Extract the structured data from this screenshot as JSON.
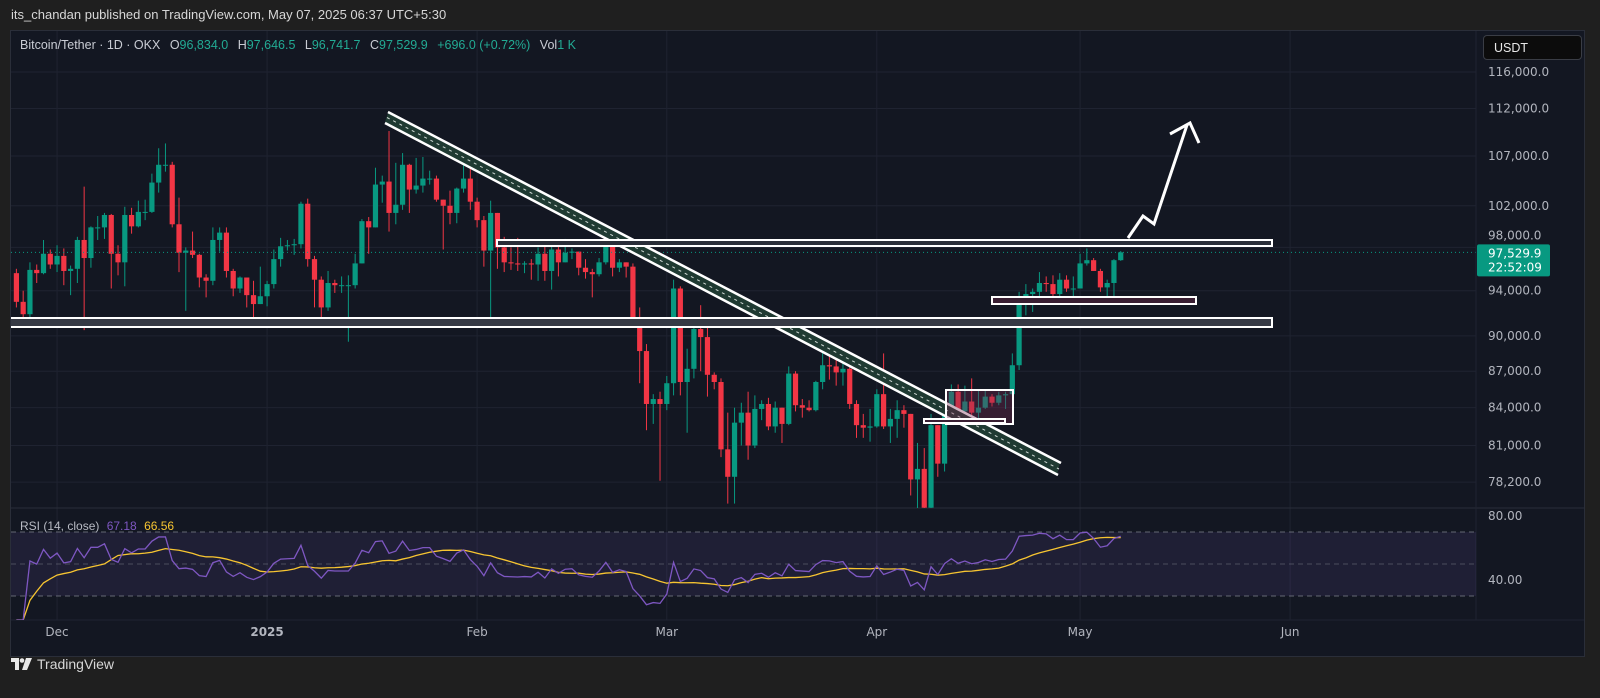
{
  "header": {
    "published_by": "its_chandan published on TradingView.com, May 07, 2025 06:37 UTC+5:30"
  },
  "legend": {
    "symbol": "Bitcoin/Tether · 1D · OKX",
    "open_label": "O",
    "open": "96,834.0",
    "high_label": "H",
    "high": "97,646.5",
    "low_label": "L",
    "low": "96,741.7",
    "close_label": "C",
    "close": "97,529.9",
    "change": "+696.0 (+0.72%)",
    "vol_label": "Vol",
    "vol": "1 K"
  },
  "currency_button": "USDT",
  "price_label": {
    "price": "97,529.9",
    "countdown": "22:52:09"
  },
  "rsi_legend": {
    "name": "RSI (14, close)",
    "rsi": "67.18",
    "ma": "66.56"
  },
  "footer": {
    "brand": "TradingView"
  },
  "colors": {
    "up": "#089981",
    "down": "#f23645",
    "rsi": "#7e57c2",
    "rsi_ma": "#f7c531",
    "background": "#131722",
    "drawings": "#ffffff"
  },
  "chart_data": {
    "type": "candlestick",
    "symbol": "Bitcoin/Tether",
    "interval": "1D",
    "exchange": "OKX",
    "y_scale": "log",
    "ylim": [
      74000,
      118000
    ],
    "price_ticks": [
      "116,000.0",
      "112,000.0",
      "107,000.0",
      "102,000.0",
      "98,000.0",
      "94,000.0",
      "90,000.0",
      "87,000.0",
      "84,000.0",
      "81,000.0",
      "78,200.0"
    ],
    "price_tick_values": [
      116000,
      112000,
      107000,
      102000,
      98000,
      94000,
      90000,
      87000,
      84000,
      81000,
      78200
    ],
    "x_range": [
      "2024-11-25",
      "2025-06-12"
    ],
    "x_ticks": [
      {
        "label": "Dec",
        "day": 6
      },
      {
        "label": "2025",
        "day": 37
      },
      {
        "label": "Feb",
        "day": 68
      },
      {
        "label": "Mar",
        "day": 96
      },
      {
        "label": "Apr",
        "day": 127
      },
      {
        "label": "May",
        "day": 157
      },
      {
        "label": "Jun",
        "day": 188
      }
    ],
    "first_date": "2024-11-25",
    "first_open_k": 95.6,
    "close_k": [
      93.0,
      91.9,
      95.9,
      95.6,
      97.4,
      96.4,
      97.2,
      95.8,
      96.0,
      98.7,
      97.0,
      99.9,
      99.9,
      101.1,
      97.4,
      96.6,
      101.1,
      100.0,
      101.4,
      101.4,
      104.3,
      106.1,
      106.1,
      100.2,
      97.5,
      97.7,
      97.3,
      95.2,
      94.9,
      98.7,
      99.4,
      95.8,
      94.2,
      95.2,
      93.6,
      92.8,
      93.5,
      94.6,
      96.9,
      98.1,
      98.2,
      98.3,
      102.2,
      96.9,
      95.0,
      92.5,
      94.7,
      94.5,
      94.5,
      94.5,
      96.5,
      100.5,
      99.9,
      104.1,
      104.4,
      101.3,
      102.1,
      106.1,
      103.6,
      104.0,
      104.7,
      104.7,
      102.6,
      102.0,
      101.3,
      103.7,
      104.7,
      102.4,
      100.6,
      97.7,
      101.3,
      98.0,
      96.6,
      96.5,
      96.4,
      96.5,
      96.4,
      97.4,
      95.8,
      97.8,
      96.6,
      97.5,
      97.6,
      96.1,
      95.7,
      95.5,
      96.6,
      98.3,
      96.1,
      96.6,
      96.2,
      91.5,
      88.7,
      84.3,
      84.7,
      84.3,
      86.0,
      94.2,
      86.1,
      87.2,
      90.6,
      89.9,
      86.7,
      86.1,
      80.7,
      78.6,
      82.8,
      83.6,
      81.0,
      83.9,
      84.3,
      82.5,
      84.0,
      82.7,
      86.8,
      84.2,
      84.0,
      83.8,
      86.1,
      87.5,
      87.4,
      86.9,
      87.2,
      84.3,
      82.6,
      82.4,
      82.5,
      85.1,
      82.5,
      83.1,
      83.8,
      83.5,
      78.4,
      79.2,
      76.3,
      82.6,
      79.6,
      83.4,
      85.3,
      83.7,
      84.5,
      83.6,
      84.0,
      84.9,
      84.4,
      85.0,
      85.1,
      87.5,
      93.4,
      93.7,
      93.9,
      94.7,
      94.6,
      93.7,
      95.0,
      94.2,
      94.2,
      96.5,
      96.8,
      95.8,
      94.3,
      94.7,
      96.8,
      97.53
    ],
    "high_k": [
      96.0,
      94.0,
      96.6,
      96.4,
      98.7,
      97.8,
      98.2,
      97.9,
      96.3,
      99.0,
      103.9,
      100.0,
      101.0,
      101.3,
      101.2,
      98.2,
      101.9,
      101.8,
      102.5,
      102.6,
      105.2,
      107.8,
      108.3,
      106.4,
      102.8,
      98.0,
      99.5,
      97.4,
      95.5,
      99.9,
      99.9,
      99.9,
      96.0,
      95.3,
      95.0,
      94.9,
      96.2,
      94.9,
      97.8,
      98.9,
      98.7,
      98.8,
      102.4,
      102.7,
      97.2,
      95.3,
      95.8,
      95.0,
      95.3,
      95.4,
      97.4,
      100.7,
      100.9,
      105.8,
      105.0,
      109.6,
      106.3,
      107.3,
      106.2,
      106.8,
      106.9,
      105.5,
      105.0,
      102.6,
      103.5,
      103.8,
      106.4,
      106.0,
      102.8,
      101.0,
      102.5,
      101.3,
      99.0,
      98.0,
      98.9,
      96.7,
      96.9,
      98.0,
      98.5,
      98.5,
      98.1,
      98.8,
      97.9,
      97.6,
      96.9,
      96.0,
      97.0,
      98.8,
      99.5,
      96.9,
      96.6,
      96.5,
      92.5,
      89.3,
      85.1,
      85.3,
      86.6,
      95.0,
      94.4,
      88.9,
      91.0,
      92.7,
      91.1,
      86.9,
      86.4,
      83.6,
      84.0,
      84.4,
      85.3,
      85.0,
      84.6,
      84.8,
      84.5,
      84.0,
      87.4,
      87.0,
      84.7,
      84.6,
      86.2,
      88.7,
      88.5,
      88.3,
      87.8,
      87.6,
      84.6,
      83.5,
      83.9,
      85.5,
      88.5,
      83.9,
      84.6,
      84.2,
      83.5,
      81.2,
      80.8,
      83.5,
      82.6,
      84.2,
      85.9,
      85.9,
      85.8,
      86.4,
      85.5,
      85.4,
      85.1,
      85.3,
      85.3,
      88.5,
      93.9,
      94.6,
      94.2,
      95.7,
      95.3,
      95.4,
      95.6,
      95.4,
      95.3,
      97.4,
      97.9,
      97.0,
      96.0,
      95.0,
      96.9,
      97.65
    ],
    "low_k": [
      92.5,
      90.8,
      91.6,
      94.7,
      95.5,
      96.0,
      95.7,
      94.5,
      93.6,
      94.7,
      90.5,
      96.1,
      98.7,
      98.8,
      94.2,
      95.4,
      94.4,
      99.3,
      99.9,
      100.6,
      101.3,
      103.3,
      105.4,
      99.9,
      95.7,
      92.2,
      97.0,
      94.3,
      93.4,
      94.5,
      97.6,
      95.2,
      93.5,
      93.8,
      92.5,
      91.5,
      92.8,
      92.6,
      94.2,
      96.2,
      97.7,
      97.3,
      97.9,
      96.2,
      92.5,
      91.2,
      92.2,
      93.8,
      93.8,
      89.5,
      94.2,
      96.5,
      97.4,
      99.9,
      102.3,
      99.5,
      100.2,
      101.6,
      101.3,
      103.2,
      103.3,
      104.1,
      102.4,
      97.8,
      100.2,
      100.3,
      103.3,
      101.6,
      99.9,
      96.2,
      91.2,
      96.0,
      95.7,
      95.9,
      95.8,
      95.6,
      95.0,
      94.9,
      94.9,
      94.1,
      95.3,
      96.6,
      96.9,
      95.4,
      95.1,
      93.4,
      95.3,
      96.4,
      95.3,
      95.7,
      95.2,
      91.3,
      86.0,
      82.2,
      82.7,
      78.3,
      83.8,
      85.0,
      85.0,
      82.0,
      86.4,
      87.0,
      84.9,
      85.5,
      80.1,
      76.6,
      76.6,
      81.0,
      79.9,
      80.8,
      83.0,
      82.2,
      82.0,
      81.2,
      82.6,
      83.7,
      83.2,
      83.7,
      83.7,
      85.5,
      86.3,
      85.8,
      85.8,
      83.9,
      81.6,
      81.6,
      81.3,
      82.4,
      82.3,
      81.2,
      81.6,
      82.4,
      77.2,
      74.6,
      76.2,
      74.6,
      78.6,
      79.0,
      82.7,
      83.1,
      83.6,
      83.2,
      83.1,
      83.9,
      84.1,
      84.2,
      83.9,
      85.0,
      87.1,
      91.8,
      92.1,
      93.0,
      93.9,
      93.1,
      93.1,
      93.9,
      92.9,
      94.2,
      96.3,
      95.8,
      93.9,
      93.5,
      93.5,
      96.74
    ],
    "current_price": 97529.9,
    "indicator": {
      "name": "RSI (14, close)",
      "rsi_last": 67.18,
      "ma_last": 66.56,
      "ylim": [
        20,
        85
      ],
      "ticks": [
        "80.00",
        "40.00"
      ],
      "tick_values": [
        80,
        40
      ],
      "bands": [
        70,
        50,
        30
      ]
    },
    "grid": true
  }
}
